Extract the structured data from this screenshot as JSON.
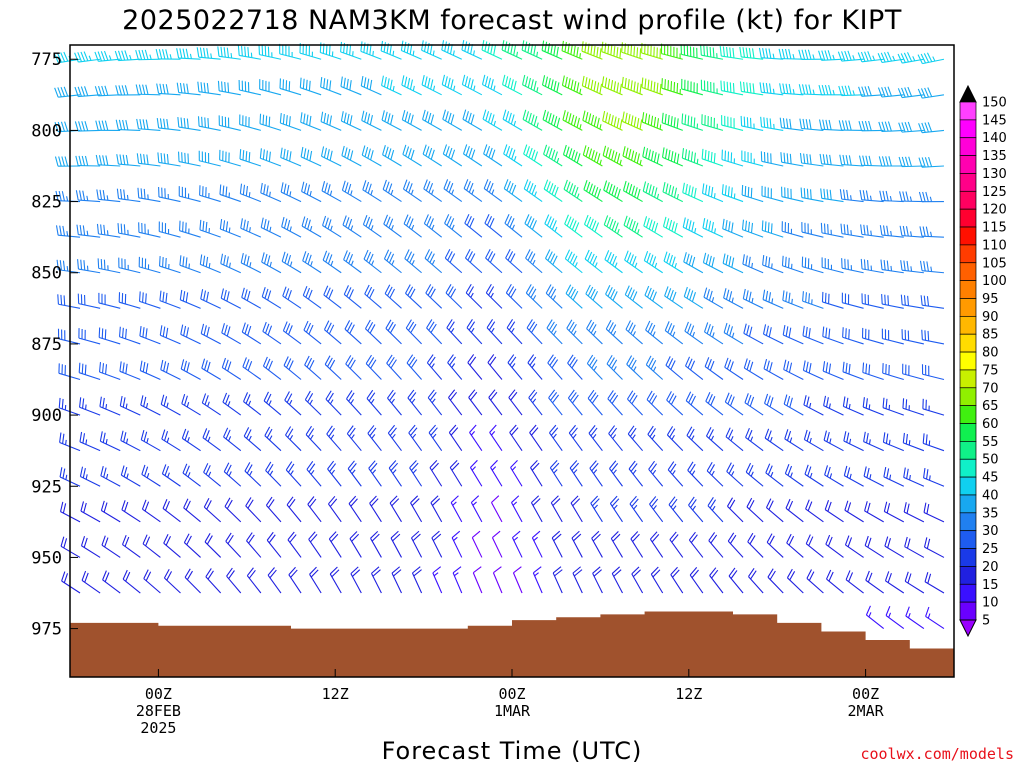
{
  "chart_data": {
    "type": "wind-profile",
    "title": "2025022718 NAM3KM forecast wind profile (kt) for KIPT",
    "xlabel": "Forecast Time (UTC)",
    "credit": "coolwx.com/models",
    "y_axis": {
      "ticks": [
        775,
        800,
        825,
        850,
        875,
        900,
        925,
        950,
        975
      ],
      "range": [
        770,
        992
      ],
      "units": "hPa"
    },
    "x_axis": {
      "ticks": [
        {
          "hour": 6,
          "lines": [
            "00Z",
            "28FEB",
            "2025"
          ]
        },
        {
          "hour": 18,
          "lines": [
            "12Z"
          ]
        },
        {
          "hour": 30,
          "lines": [
            "00Z",
            "1MAR"
          ]
        },
        {
          "hour": 42,
          "lines": [
            "12Z"
          ]
        },
        {
          "hour": 54,
          "lines": [
            "00Z",
            "2MAR"
          ]
        }
      ],
      "range": [
        0,
        60
      ],
      "units": "forecast hour"
    },
    "levels": [
      775,
      787.5,
      800,
      812.5,
      825,
      837.5,
      850,
      862.5,
      875,
      887.5,
      900,
      912.5,
      925,
      937.5,
      950,
      962.5,
      975
    ],
    "times_hours": [
      0,
      3,
      6,
      9,
      12,
      15,
      18,
      21,
      24,
      27,
      30,
      33,
      36,
      39,
      42,
      45,
      48,
      51,
      54,
      57,
      60
    ],
    "surface_pressure": [
      973,
      973,
      974,
      974,
      974,
      975,
      975,
      975,
      975,
      974,
      972,
      971,
      970,
      969,
      969,
      970,
      973,
      976,
      979,
      982,
      984
    ],
    "wind_field": {
      "upper_base_speed_kt": 38,
      "note": "speed increases with height, west to northwest flow; jet core ~65 kt near 775 hPa around 1MAR 06-12Z"
    },
    "colorbar": {
      "values": [
        5,
        10,
        15,
        20,
        25,
        30,
        35,
        40,
        45,
        50,
        55,
        60,
        65,
        70,
        75,
        80,
        85,
        90,
        95,
        100,
        105,
        110,
        115,
        120,
        125,
        130,
        135,
        140,
        145,
        150
      ],
      "colors": [
        "#9a00ff",
        "#6a00ff",
        "#3a10ff",
        "#2020e0",
        "#1a3ae8",
        "#1e5cf0",
        "#2080f0",
        "#18a8f0",
        "#10d0f0",
        "#10f0c8",
        "#10f088",
        "#10f050",
        "#40f010",
        "#90f000",
        "#c8f000",
        "#ffff00",
        "#ffdc00",
        "#ffb800",
        "#ff9a00",
        "#ff8000",
        "#ff6000",
        "#ff3c00",
        "#ff1000",
        "#ff0030",
        "#ff0060",
        "#ff0088",
        "#ff00b0",
        "#ff00d8",
        "#ff00ff",
        "#ff40ff"
      ]
    },
    "terrain_color": "#a0522d",
    "grid": false,
    "legend_placement": "right"
  }
}
